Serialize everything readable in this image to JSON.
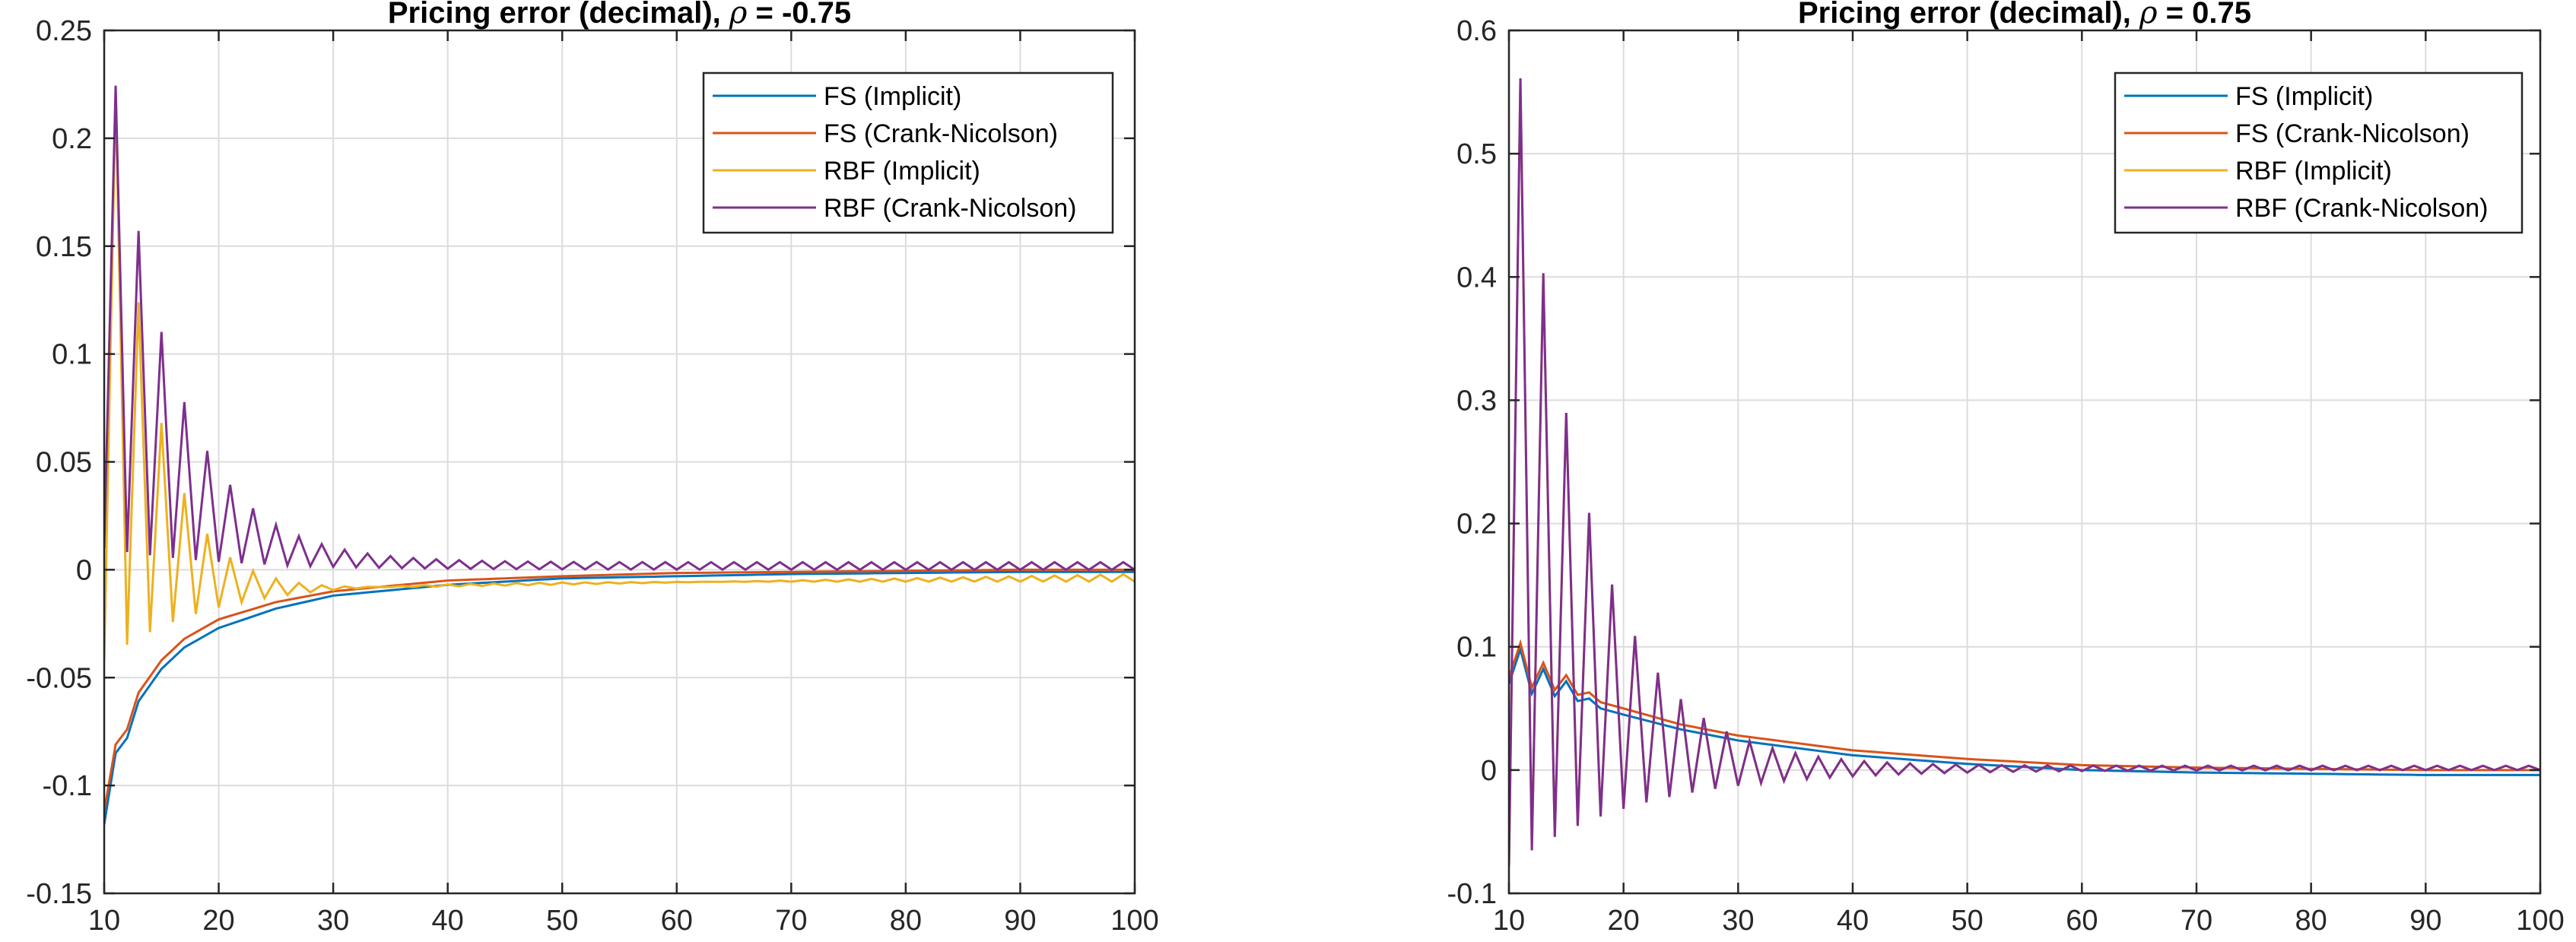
{
  "figure": {
    "name": "pricing-error-figure"
  },
  "chart_data": [
    {
      "type": "line",
      "title": "Pricing error (decimal), ",
      "title_symbol": "ρ",
      "title_value": " = -0.75",
      "xlabel": "",
      "ylabel": "",
      "xlim": [
        10,
        100
      ],
      "ylim": [
        -0.15,
        0.25
      ],
      "xticks": [
        10,
        20,
        30,
        40,
        50,
        60,
        70,
        80,
        90,
        100
      ],
      "xtick_labels": [
        "10",
        "20",
        "30",
        "40",
        "50",
        "60",
        "70",
        "80",
        "90",
        "100"
      ],
      "yticks": [
        -0.15,
        -0.1,
        -0.05,
        0,
        0.05,
        0.1,
        0.15,
        0.2,
        0.25
      ],
      "ytick_labels": [
        "-0.15",
        "-0.1",
        "-0.05",
        "0",
        "0.05",
        "0.1",
        "0.15",
        "0.2",
        "0.25"
      ],
      "grid": true,
      "legend_position": "top-right",
      "x": {
        "start": 10,
        "end": 100,
        "step": 1
      },
      "series": [
        {
          "name": "FS (Implicit)",
          "color": "#0072BD",
          "kind": "smooth",
          "points": [
            [
              10,
              -0.118
            ],
            [
              11,
              -0.085
            ],
            [
              12,
              -0.078
            ],
            [
              13,
              -0.061
            ],
            [
              15,
              -0.046
            ],
            [
              17,
              -0.036
            ],
            [
              20,
              -0.027
            ],
            [
              25,
              -0.018
            ],
            [
              30,
              -0.012
            ],
            [
              40,
              -0.007
            ],
            [
              50,
              -0.004
            ],
            [
              60,
              -0.003
            ],
            [
              70,
              -0.002
            ],
            [
              80,
              -0.0015
            ],
            [
              90,
              -0.001
            ],
            [
              100,
              -0.001
            ]
          ]
        },
        {
          "name": "FS (Crank-Nicolson)",
          "color": "#D95319",
          "kind": "smooth",
          "points": [
            [
              10,
              -0.112
            ],
            [
              11,
              -0.081
            ],
            [
              12,
              -0.074
            ],
            [
              13,
              -0.057
            ],
            [
              15,
              -0.042
            ],
            [
              17,
              -0.032
            ],
            [
              20,
              -0.023
            ],
            [
              25,
              -0.015
            ],
            [
              30,
              -0.01
            ],
            [
              40,
              -0.005
            ],
            [
              50,
              -0.003
            ],
            [
              60,
              -0.0015
            ],
            [
              70,
              -0.001
            ],
            [
              80,
              -0.0005
            ],
            [
              90,
              0
            ],
            [
              100,
              0
            ]
          ]
        },
        {
          "name": "RBF (Implicit)",
          "color": "#EDB120",
          "kind": "oscillating",
          "odd": {
            "a": 0.2244,
            "b": -0.0065,
            "tau": 3.7,
            "c": -0.0043,
            "d": 0.0045
          },
          "even": {
            "a": -0.042,
            "b": -0.0055,
            "tau": 9.0,
            "c": 0,
            "d": 0
          }
        },
        {
          "name": "RBF (Crank-Nicolson)",
          "color": "#7E2F8E",
          "kind": "oscillating",
          "odd": {
            "a": 0.2244,
            "b": 0.0035,
            "tau": 5.5,
            "c": 0,
            "d": 0
          },
          "even": {
            "a": 0.01,
            "b": 0,
            "tau": 10.0,
            "c": 0,
            "d": 0
          }
        }
      ]
    },
    {
      "type": "line",
      "title": "Pricing error (decimal), ",
      "title_symbol": "ρ",
      "title_value": " = 0.75",
      "xlabel": "",
      "ylabel": "",
      "xlim": [
        10,
        100
      ],
      "ylim": [
        -0.1,
        0.6
      ],
      "xticks": [
        10,
        20,
        30,
        40,
        50,
        60,
        70,
        80,
        90,
        100
      ],
      "xtick_labels": [
        "10",
        "20",
        "30",
        "40",
        "50",
        "60",
        "70",
        "80",
        "90",
        "100"
      ],
      "yticks": [
        -0.1,
        0,
        0.1,
        0.2,
        0.3,
        0.4,
        0.5,
        0.6
      ],
      "ytick_labels": [
        "-0.1",
        "0",
        "0.1",
        "0.2",
        "0.3",
        "0.4",
        "0.5",
        "0.6"
      ],
      "grid": true,
      "legend_position": "top-right",
      "x": {
        "start": 10,
        "end": 100,
        "step": 1
      },
      "series": [
        {
          "name": "FS (Implicit)",
          "color": "#0072BD",
          "kind": "smooth",
          "points": [
            [
              10,
              0.07
            ],
            [
              11,
              0.098
            ],
            [
              12,
              0.062
            ],
            [
              13,
              0.082
            ],
            [
              14,
              0.06
            ],
            [
              15,
              0.072
            ],
            [
              16,
              0.056
            ],
            [
              17,
              0.058
            ],
            [
              18,
              0.05
            ],
            [
              20,
              0.045
            ],
            [
              25,
              0.033
            ],
            [
              30,
              0.024
            ],
            [
              40,
              0.012
            ],
            [
              50,
              0.005
            ],
            [
              60,
              0
            ],
            [
              70,
              -0.002
            ],
            [
              80,
              -0.003
            ],
            [
              90,
              -0.004
            ],
            [
              100,
              -0.004
            ]
          ]
        },
        {
          "name": "FS (Crank-Nicolson)",
          "color": "#D95319",
          "kind": "smooth",
          "points": [
            [
              10,
              0.075
            ],
            [
              11,
              0.103
            ],
            [
              12,
              0.067
            ],
            [
              13,
              0.087
            ],
            [
              14,
              0.065
            ],
            [
              15,
              0.077
            ],
            [
              16,
              0.061
            ],
            [
              17,
              0.063
            ],
            [
              18,
              0.055
            ],
            [
              20,
              0.05
            ],
            [
              25,
              0.037
            ],
            [
              30,
              0.028
            ],
            [
              40,
              0.016
            ],
            [
              50,
              0.009
            ],
            [
              60,
              0.004
            ],
            [
              70,
              0.002
            ],
            [
              80,
              0.001
            ],
            [
              90,
              0
            ],
            [
              100,
              0
            ]
          ]
        },
        {
          "name": "RBF (Implicit)",
          "color": "#EDB120",
          "kind": "oscillating",
          "odd": {
            "a": 0.5611,
            "b": 0.0035,
            "tau": 6.0,
            "c": 0,
            "d": 0
          },
          "even": {
            "a": -0.078,
            "b": 0,
            "tau": 11.0,
            "c": 0,
            "d": 0
          }
        },
        {
          "name": "RBF (Crank-Nicolson)",
          "color": "#7E2F8E",
          "kind": "oscillating",
          "odd": {
            "a": 0.5611,
            "b": 0.0035,
            "tau": 6.0,
            "c": 0,
            "d": 0
          },
          "even": {
            "a": -0.078,
            "b": 0,
            "tau": 11.0,
            "c": 0,
            "d": 0
          }
        }
      ]
    }
  ]
}
